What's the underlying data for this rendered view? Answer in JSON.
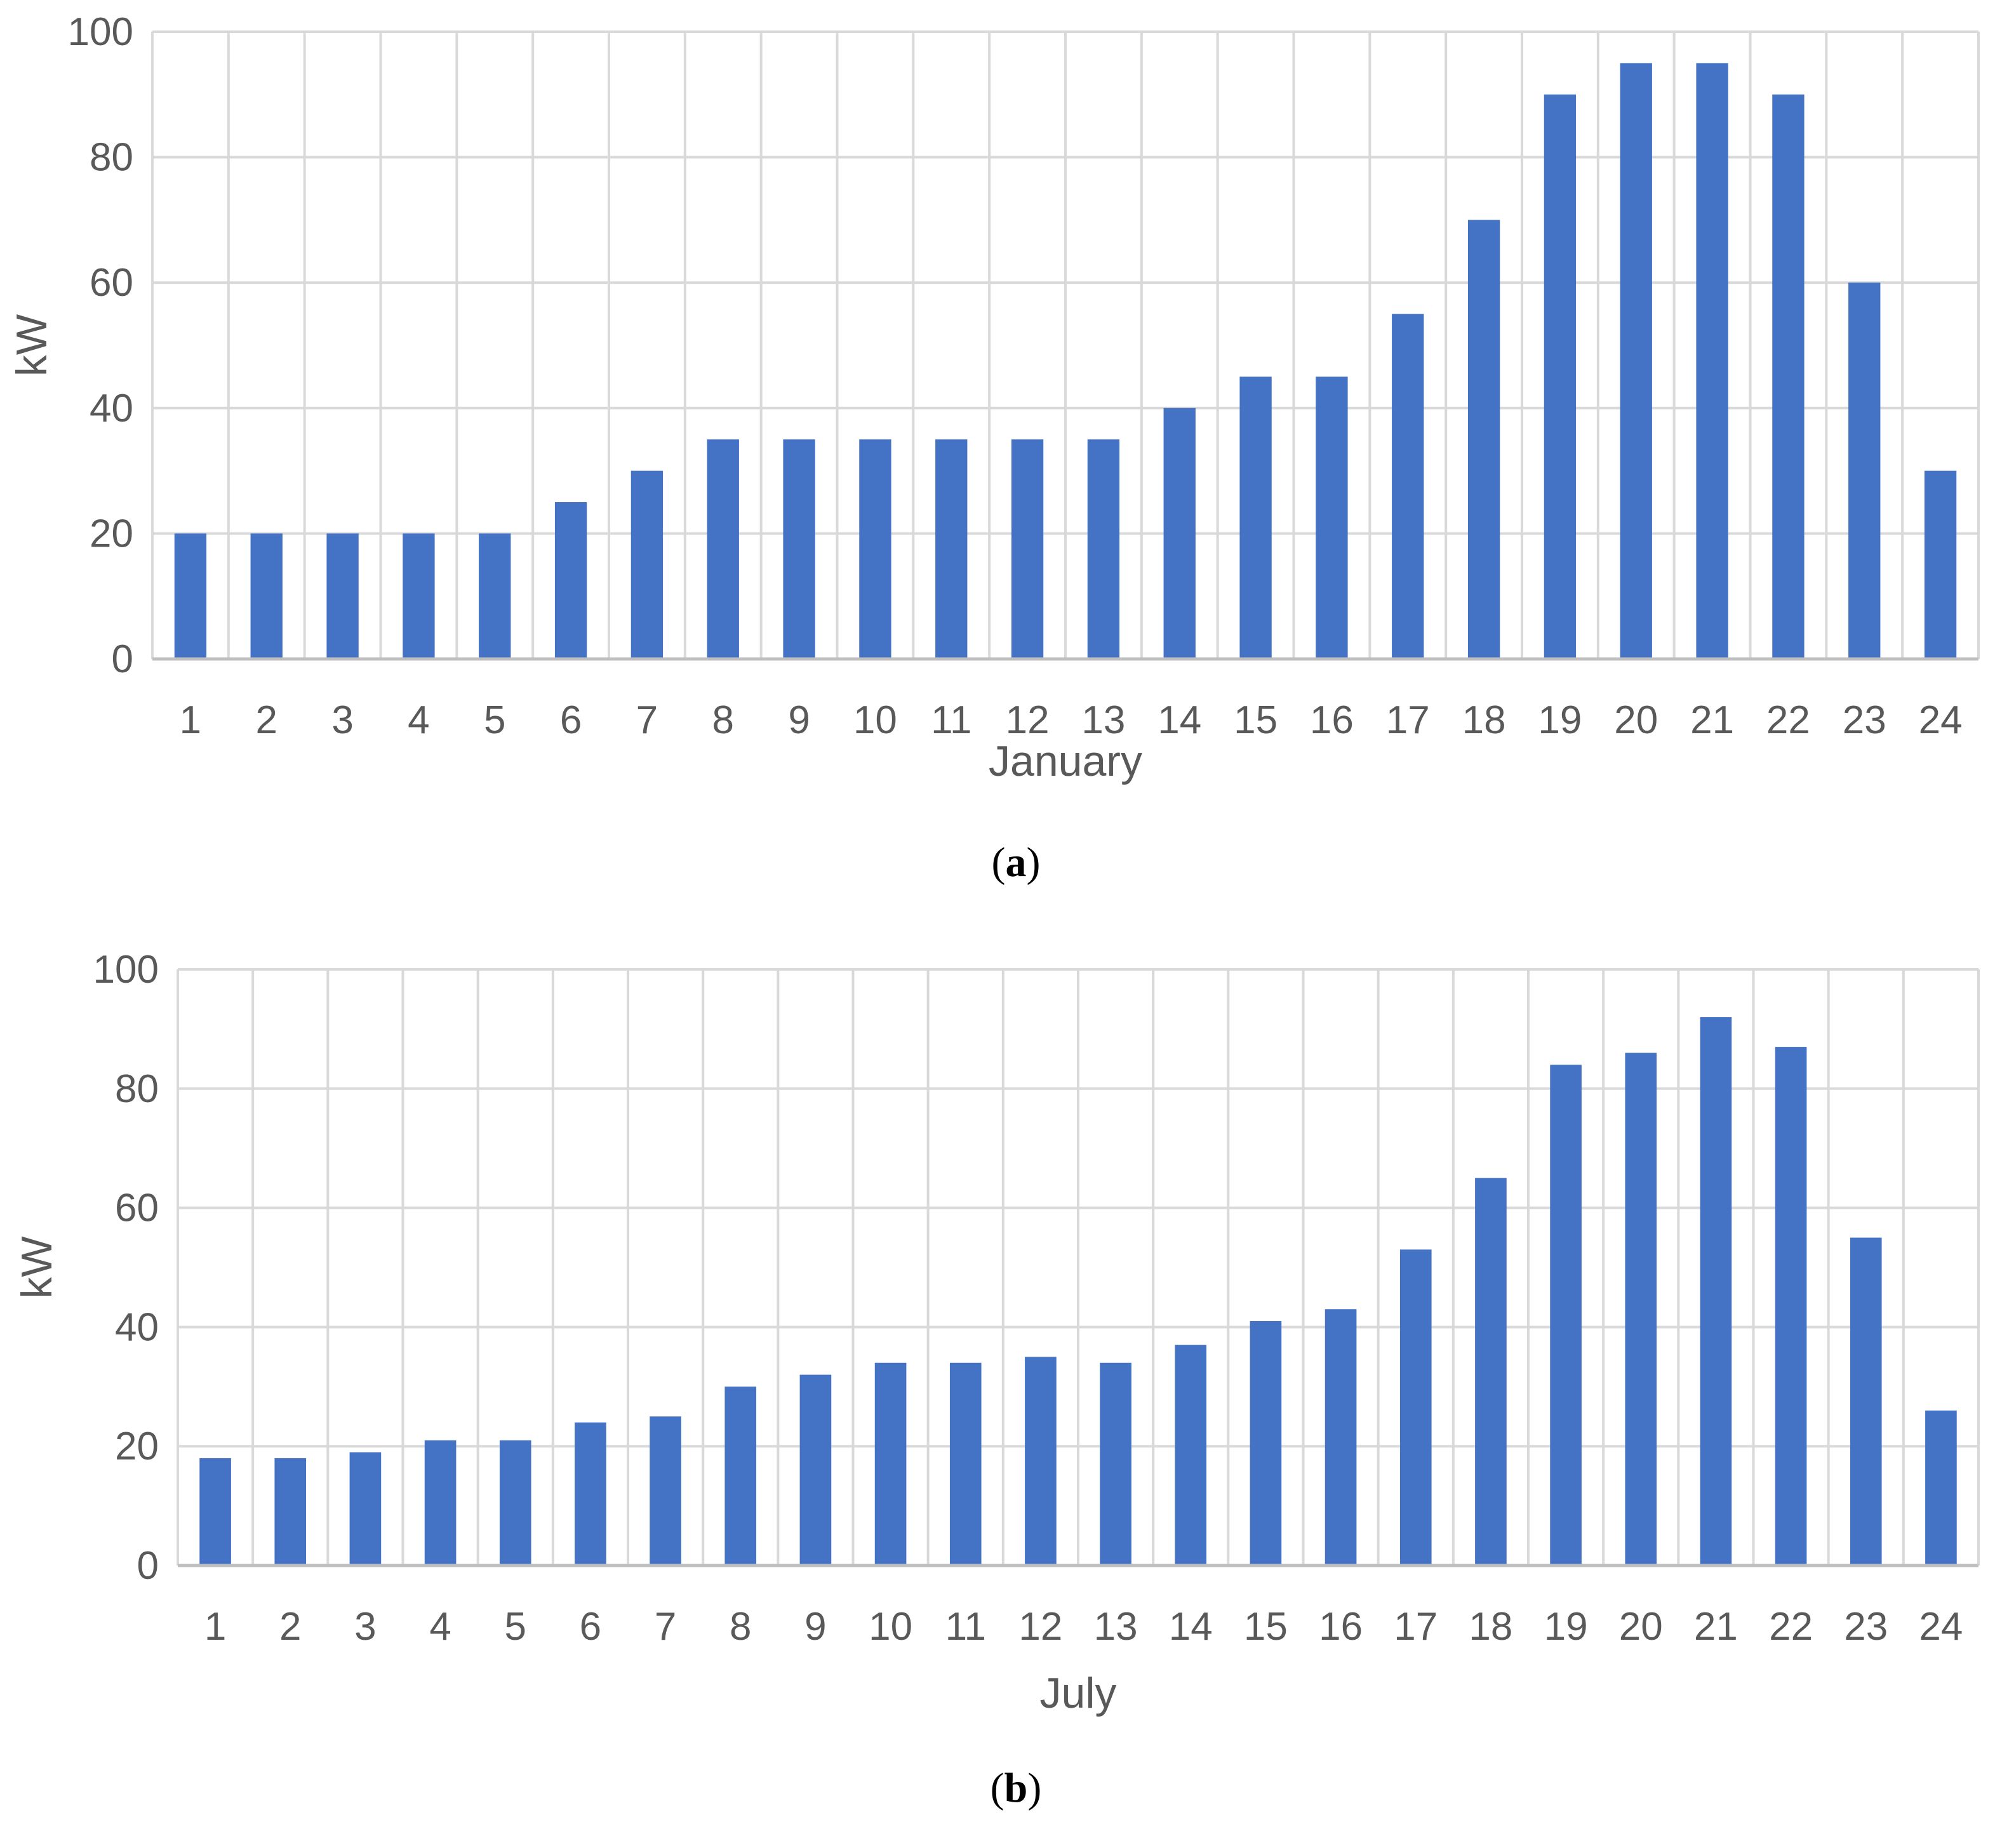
{
  "colors": {
    "bar": "#4472C4",
    "grid": "#D9D9D9",
    "axis": "#BFBFBF",
    "text": "#595959"
  },
  "chart_data": [
    {
      "type": "bar",
      "caption": "a",
      "xlabel": "January",
      "ylabel": "kW",
      "ylim": [
        0,
        100
      ],
      "yticks": [
        0,
        20,
        40,
        60,
        80,
        100
      ],
      "grid": true,
      "categories": [
        "1",
        "2",
        "3",
        "4",
        "5",
        "6",
        "7",
        "8",
        "9",
        "10",
        "11",
        "12",
        "13",
        "14",
        "15",
        "16",
        "17",
        "18",
        "19",
        "20",
        "21",
        "22",
        "23",
        "24"
      ],
      "values": [
        20,
        20,
        20,
        20,
        20,
        25,
        30,
        35,
        35,
        35,
        35,
        35,
        35,
        40,
        45,
        45,
        55,
        70,
        90,
        95,
        95,
        90,
        60,
        30
      ]
    },
    {
      "type": "bar",
      "caption": "b",
      "xlabel": "July",
      "ylabel": "kW",
      "ylim": [
        0,
        100
      ],
      "yticks": [
        0,
        20,
        40,
        60,
        80,
        100
      ],
      "grid": true,
      "categories": [
        "1",
        "2",
        "3",
        "4",
        "5",
        "6",
        "7",
        "8",
        "9",
        "10",
        "11",
        "12",
        "13",
        "14",
        "15",
        "16",
        "17",
        "18",
        "19",
        "20",
        "21",
        "22",
        "23",
        "24"
      ],
      "values": [
        18,
        18,
        19,
        21,
        21,
        24,
        25,
        30,
        32,
        34,
        34,
        35,
        34,
        37,
        41,
        43,
        53,
        65,
        84,
        86,
        92,
        87,
        55,
        26
      ]
    }
  ]
}
